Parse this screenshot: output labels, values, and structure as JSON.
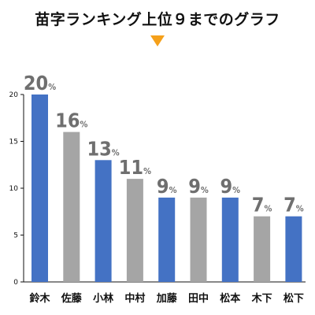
{
  "title": "苗字ランキング上位９までのグラフ",
  "colors": {
    "blue": "#4472c4",
    "gray": "#a5a5a5",
    "arrow": "#f5a01a",
    "axis": "#111111",
    "label": "#6f6f6f"
  },
  "chart_data": {
    "type": "bar",
    "title": "苗字ランキング上位９までのグラフ",
    "xlabel": "",
    "ylabel": "",
    "categories": [
      "鈴木",
      "佐藤",
      "小林",
      "中村",
      "加藤",
      "田中",
      "松本",
      "木下",
      "松下"
    ],
    "values": [
      20,
      16,
      13,
      11,
      9,
      9,
      9,
      7,
      7
    ],
    "value_suffix": "%",
    "bar_colors": [
      "blue",
      "gray",
      "blue",
      "gray",
      "blue",
      "gray",
      "blue",
      "gray",
      "blue"
    ],
    "ylim": [
      0,
      20
    ],
    "yticks": [
      0,
      5,
      10,
      15,
      20
    ],
    "grid": false,
    "legend": "none"
  }
}
